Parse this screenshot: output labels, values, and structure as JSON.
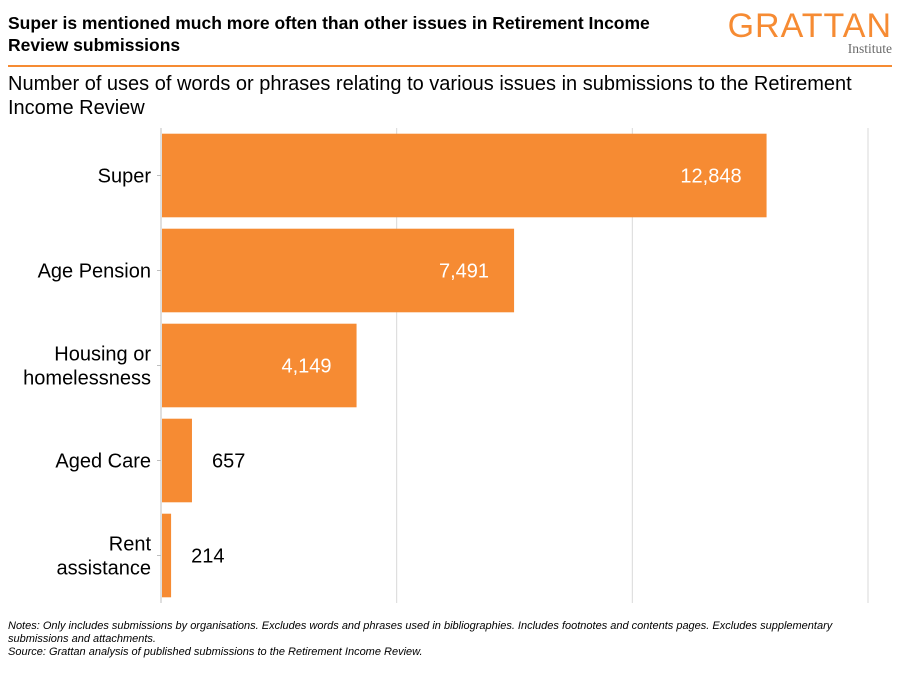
{
  "header": {
    "title": "Super is mentioned much more often than other issues in Retirement Income Review submissions",
    "subtitle": "Number of uses of words or phrases relating to various issues in submissions to the Retirement Income Review"
  },
  "logo": {
    "word": "GRATTAN",
    "sub": "Institute"
  },
  "colors": {
    "accent": "#F68B33",
    "bar": "#F68B33",
    "grid": "#d9d9d9",
    "axis": "#bfbfbf"
  },
  "chart_data": {
    "type": "bar",
    "orientation": "horizontal",
    "categories": [
      "Super",
      "Age Pension",
      "Housing or\nhomelessness",
      "Aged Care",
      "Rent\nassistance"
    ],
    "values": [
      12848,
      7491,
      4149,
      657,
      214
    ],
    "value_labels": [
      "12,848",
      "7,491",
      "4,149",
      "657",
      "214"
    ],
    "xlim": [
      0,
      15000
    ],
    "grid": true,
    "xticks_shown": false
  },
  "footer": {
    "notes": "Notes: Only includes submissions by organisations. Excludes words and phrases used in bibliographies. Includes footnotes and contents pages. Excludes supplementary submissions and attachments.",
    "source": "Source: Grattan analysis of published submissions to the Retirement Income Review."
  }
}
